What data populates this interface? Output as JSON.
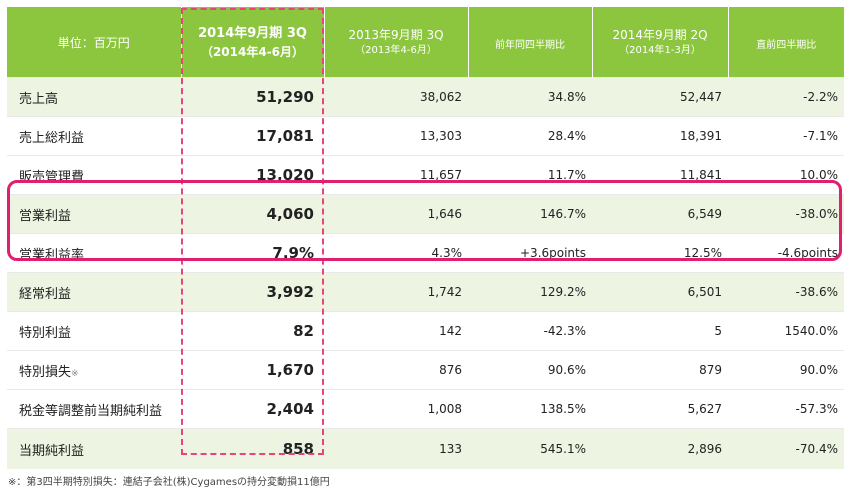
{
  "header": {
    "unit": "単位：百万円",
    "current": {
      "period": "2014年9月期 3Q",
      "range": "（2014年4-6月）"
    },
    "prior_year": {
      "period": "2013年9月期 3Q",
      "range": "（2013年4-6月）"
    },
    "yoy": "前年同四半期比",
    "prior_quarter": {
      "period": "2014年9月期 2Q",
      "range": "（2014年1-3月）"
    },
    "qoq": "直前四半期比"
  },
  "rows": [
    {
      "label": "売上高",
      "current": "51,290",
      "prior_year": "38,062",
      "yoy": "34.8%",
      "prior_quarter": "52,447",
      "qoq": "-2.2%"
    },
    {
      "label": "売上総利益",
      "current": "17,081",
      "prior_year": "13,303",
      "yoy": "28.4%",
      "prior_quarter": "18,391",
      "qoq": "-7.1%"
    },
    {
      "label": "販売管理費",
      "current": "13,020",
      "prior_year": "11,657",
      "yoy": "11.7%",
      "prior_quarter": "11,841",
      "qoq": "10.0%"
    },
    {
      "label": "営業利益",
      "current": "4,060",
      "prior_year": "1,646",
      "yoy": "146.7%",
      "prior_quarter": "6,549",
      "qoq": "-38.0%"
    },
    {
      "label": "営業利益率",
      "current": "7.9%",
      "prior_year": "4.3%",
      "yoy": "+3.6points",
      "prior_quarter": "12.5%",
      "qoq": "-4.6points"
    },
    {
      "label": "経常利益",
      "current": "3,992",
      "prior_year": "1,742",
      "yoy": "129.2%",
      "prior_quarter": "6,501",
      "qoq": "-38.6%"
    },
    {
      "label": "特別利益",
      "current": "82",
      "prior_year": "142",
      "yoy": "-42.3%",
      "prior_quarter": "5",
      "qoq": "1540.0%"
    },
    {
      "label": "特別損失",
      "note_mark": "※",
      "current": "1,670",
      "prior_year": "876",
      "yoy": "90.6%",
      "prior_quarter": "879",
      "qoq": "90.0%"
    },
    {
      "label": "税金等調整前当期純利益",
      "current": "2,404",
      "prior_year": "1,008",
      "yoy": "138.5%",
      "prior_quarter": "5,627",
      "qoq": "-57.3%"
    },
    {
      "label": "当期純利益",
      "current": "858",
      "prior_year": "133",
      "yoy": "545.1%",
      "prior_quarter": "2,896",
      "qoq": "-70.4%"
    }
  ],
  "footnote": "※：第3四半期特別損失：連結子会社(株)Cygamesの持分変動損11億円"
}
